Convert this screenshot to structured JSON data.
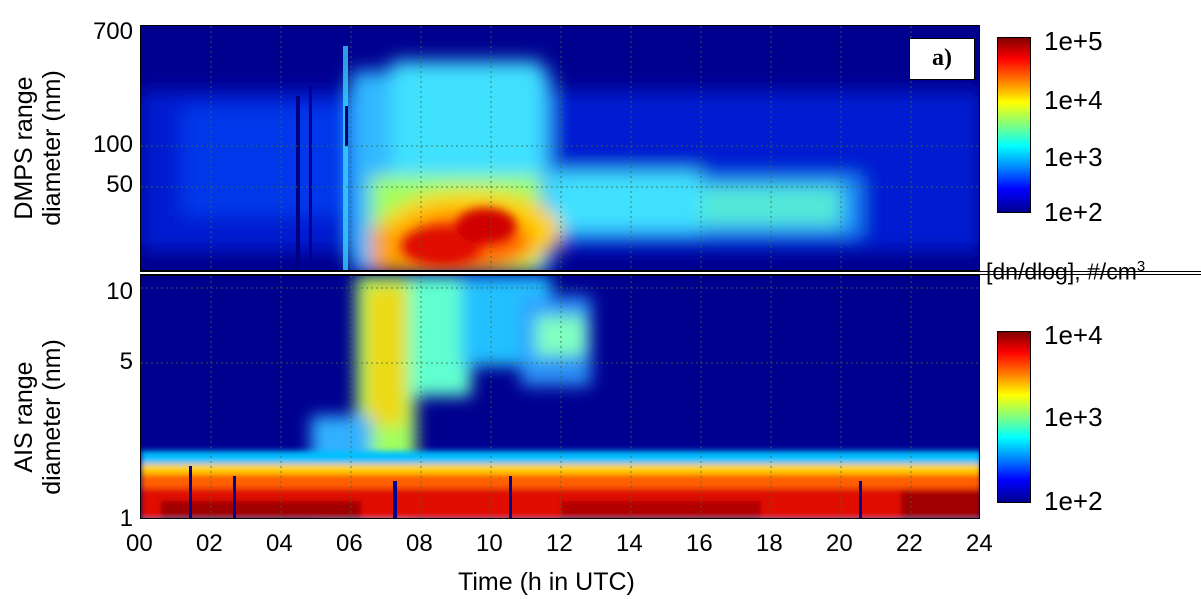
{
  "chart_data": [
    {
      "type": "heatmap",
      "panel_label": "a)",
      "ylabel": [
        "DMPS range",
        "diameter (nm)"
      ],
      "ytick_labels": [
        "700",
        "100",
        "50"
      ],
      "ylim": [
        20,
        700
      ],
      "yscale": "log",
      "colorbar": {
        "ticks": [
          "1e+5",
          "1e+4",
          "1e+3",
          "1e+2"
        ],
        "scale": "log",
        "range": [
          100,
          100000
        ]
      },
      "colormap": "jet",
      "grid": true
    },
    {
      "type": "heatmap",
      "ylabel": [
        "AIS range",
        "diameter (nm)"
      ],
      "ytick_labels": [
        "10",
        "5",
        "1"
      ],
      "ylim": [
        1,
        11
      ],
      "yscale": "log",
      "colorbar": {
        "ticks": [
          "1e+4",
          "1e+3",
          "1e+2"
        ],
        "scale": "log",
        "range": [
          100,
          10000
        ]
      },
      "colormap": "jet",
      "grid": true
    }
  ],
  "colorbar_unit": {
    "text": "[dn/dlog], #/cm",
    "superscript": "3"
  },
  "xaxis": {
    "label": "Time (h in UTC)",
    "tick_labels": [
      "00",
      "02",
      "04",
      "06",
      "08",
      "10",
      "12",
      "14",
      "16",
      "18",
      "20",
      "22",
      "24"
    ],
    "xlim": [
      0,
      24
    ]
  },
  "colors": {
    "background": "#00008f",
    "grid": "#3a6f3a"
  }
}
